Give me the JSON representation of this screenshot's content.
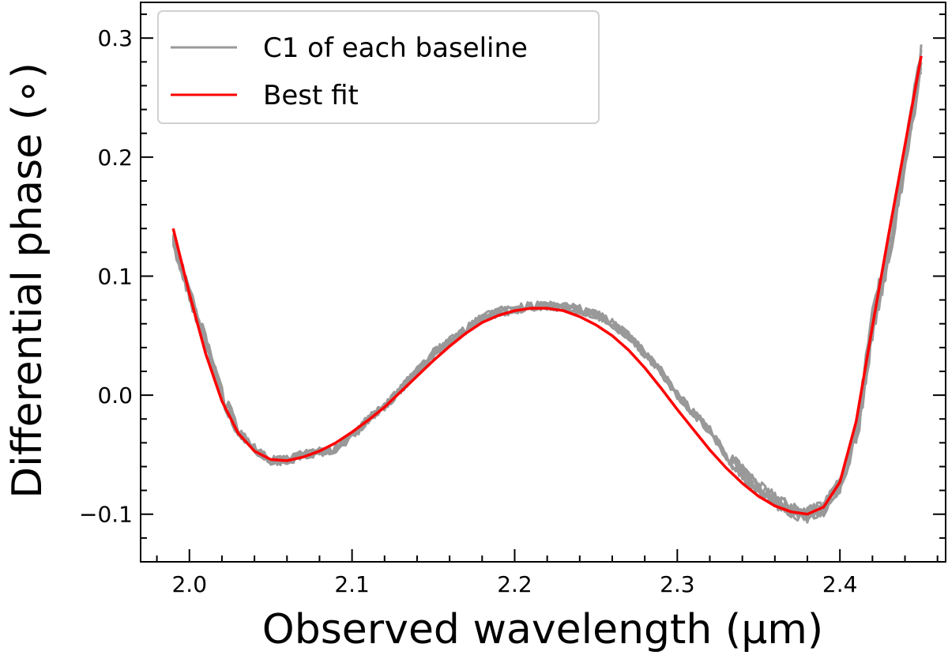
{
  "chart_data": {
    "type": "line",
    "title": "",
    "xlabel": "Observed wavelength (μm)",
    "ylabel": "Differential phase (∘)",
    "xlim": [
      1.97,
      2.465
    ],
    "ylim": [
      -0.14,
      0.33
    ],
    "xticks": [
      2.0,
      2.1,
      2.2,
      2.3,
      2.4
    ],
    "xtick_labels": [
      "2.0",
      "2.1",
      "2.2",
      "2.3",
      "2.4"
    ],
    "yticks": [
      -0.1,
      0.0,
      0.1,
      0.2,
      0.3
    ],
    "ytick_labels": [
      "−0.1",
      "0.0",
      "0.1",
      "0.2",
      "0.3"
    ],
    "grid": false,
    "legend_position": "top-left",
    "series": [
      {
        "name": "C1 of each baseline",
        "color": "#999999",
        "count": 6,
        "x": [
          1.99,
          2.0,
          2.01,
          2.02,
          2.03,
          2.04,
          2.05,
          2.06,
          2.07,
          2.08,
          2.09,
          2.1,
          2.11,
          2.12,
          2.13,
          2.14,
          2.15,
          2.16,
          2.17,
          2.18,
          2.19,
          2.2,
          2.21,
          2.22,
          2.23,
          2.24,
          2.25,
          2.26,
          2.27,
          2.28,
          2.29,
          2.3,
          2.31,
          2.32,
          2.33,
          2.34,
          2.35,
          2.36,
          2.37,
          2.38,
          2.39,
          2.4,
          2.41,
          2.42,
          2.43,
          2.44,
          2.45
        ],
        "y": [
          0.13,
          0.085,
          0.045,
          0.0,
          -0.03,
          -0.045,
          -0.055,
          -0.055,
          -0.05,
          -0.048,
          -0.045,
          -0.035,
          -0.02,
          -0.01,
          0.005,
          0.02,
          0.035,
          0.045,
          0.055,
          0.065,
          0.07,
          0.072,
          0.075,
          0.075,
          0.074,
          0.072,
          0.068,
          0.06,
          0.05,
          0.035,
          0.02,
          0.0,
          -0.015,
          -0.03,
          -0.05,
          -0.065,
          -0.078,
          -0.088,
          -0.097,
          -0.1,
          -0.095,
          -0.075,
          -0.035,
          0.06,
          0.12,
          0.2,
          0.28
        ]
      },
      {
        "name": "Best fit",
        "color": "#ff0000",
        "x": [
          1.99,
          2.0,
          2.01,
          2.02,
          2.03,
          2.04,
          2.05,
          2.06,
          2.07,
          2.08,
          2.09,
          2.1,
          2.11,
          2.12,
          2.13,
          2.14,
          2.15,
          2.16,
          2.17,
          2.18,
          2.19,
          2.2,
          2.21,
          2.22,
          2.23,
          2.24,
          2.25,
          2.26,
          2.27,
          2.28,
          2.29,
          2.3,
          2.31,
          2.32,
          2.33,
          2.34,
          2.35,
          2.36,
          2.37,
          2.38,
          2.39,
          2.4,
          2.41,
          2.42,
          2.43,
          2.44,
          2.45
        ],
        "y": [
          0.14,
          0.085,
          0.035,
          -0.005,
          -0.032,
          -0.047,
          -0.054,
          -0.055,
          -0.052,
          -0.047,
          -0.04,
          -0.031,
          -0.021,
          -0.01,
          0.003,
          0.016,
          0.029,
          0.041,
          0.052,
          0.061,
          0.067,
          0.071,
          0.073,
          0.073,
          0.071,
          0.066,
          0.059,
          0.05,
          0.038,
          0.023,
          0.006,
          -0.012,
          -0.029,
          -0.046,
          -0.061,
          -0.074,
          -0.085,
          -0.093,
          -0.098,
          -0.1,
          -0.094,
          -0.073,
          -0.022,
          0.058,
          0.135,
          0.21,
          0.285
        ]
      }
    ]
  }
}
